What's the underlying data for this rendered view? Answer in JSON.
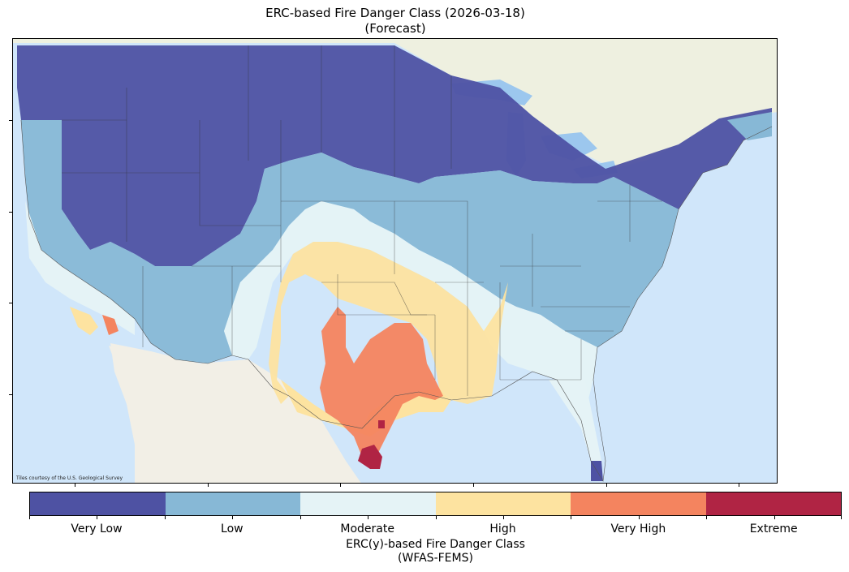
{
  "title": {
    "line1": "ERC-based Fire Danger Class (2026-03-18)",
    "line2": "(Forecast)"
  },
  "map": {
    "attribution": "Tiles courtesy of the U.S. Geological Survey",
    "region": "Contiguous United States",
    "ocean_color": "#cfe6fa",
    "land_color": "#f1eee4"
  },
  "colorbar": {
    "classes": [
      {
        "label": "Very Low",
        "color": "#4e52a3"
      },
      {
        "label": "Low",
        "color": "#87b8d6"
      },
      {
        "label": "Moderate",
        "color": "#e5f3f6"
      },
      {
        "label": "High",
        "color": "#fde3a0"
      },
      {
        "label": "Very High",
        "color": "#f4845f"
      },
      {
        "label": "Extreme",
        "color": "#b02444"
      }
    ],
    "title_line1": "ERC(y)-based Fire Danger Class",
    "title_line2": "(WFAS-FEMS)"
  }
}
